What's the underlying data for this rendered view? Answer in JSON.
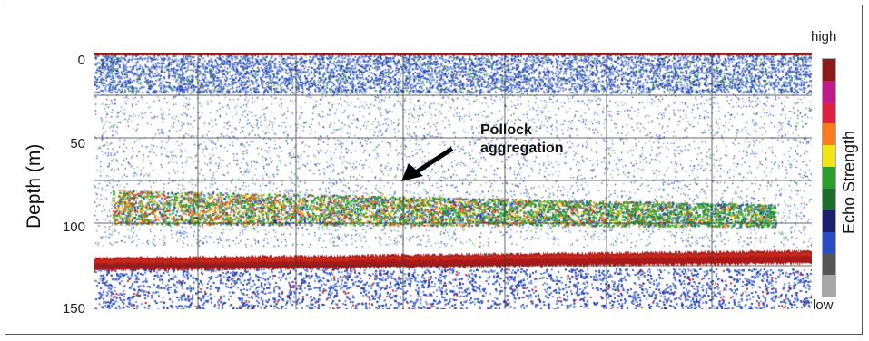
{
  "figure": {
    "y_axis_title": "Depth (m)",
    "y_ticks": [
      "0",
      "50",
      "100",
      "150"
    ],
    "annotation_line1": "Pollock",
    "annotation_line2": "aggregation",
    "colorbar_title": "Echo Strength",
    "colorbar_high": "high",
    "colorbar_low": "low",
    "colorbar_colors": [
      "#8b1a1a",
      "#c01a8a",
      "#e02040",
      "#ff7a1a",
      "#f3e414",
      "#2aa02a",
      "#1c6e2a",
      "#1a1f6e",
      "#2a4cc4",
      "#555555",
      "#a8a8a8"
    ]
  }
}
